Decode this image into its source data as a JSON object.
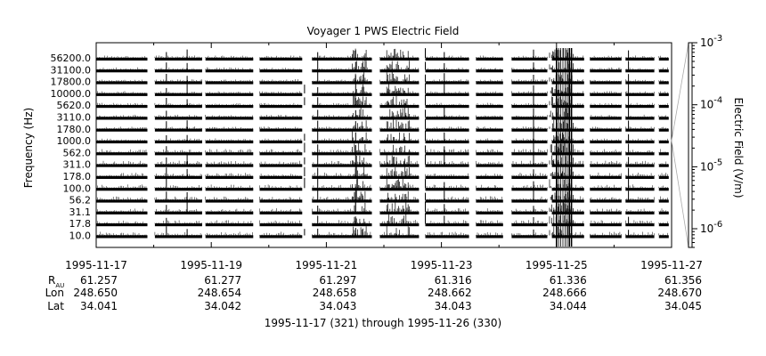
{
  "chart_data": {
    "type": "line",
    "title": "Voyager 1 PWS Electric Field",
    "ylabel": "Frequency (Hz)",
    "right_axis_label": "Electric Field (V/m)",
    "right_axis_scale": "log",
    "right_axis_range": [
      5e-07,
      0.001
    ],
    "right_axis_ticks": [
      {
        "value": 0.001,
        "mantissa": "10",
        "exponent": "-3"
      },
      {
        "value": 0.0001,
        "mantissa": "10",
        "exponent": "-4"
      },
      {
        "value": 1e-05,
        "mantissa": "10",
        "exponent": "-5"
      },
      {
        "value": 1e-06,
        "mantissa": "10",
        "exponent": "-6"
      }
    ],
    "frequency_channels": [
      "10.0",
      "17.8",
      "31.1",
      "56.2",
      "100.0",
      "178.0",
      "311.0",
      "562.0",
      "1000.0",
      "1780.0",
      "3110.0",
      "5620.0",
      "10000.0",
      "17800.0",
      "31100.0",
      "56200.0"
    ],
    "x_range": [
      "1995-11-17",
      "1995-11-27"
    ],
    "x_ticks": [
      "1995-11-17",
      "1995-11-19",
      "1995-11-21",
      "1995-11-23",
      "1995-11-25",
      "1995-11-27"
    ],
    "ephemeris_labels": {
      "rau_main": "R",
      "rau_sub": "AU",
      "lon": "Lon",
      "lat": "Lat"
    },
    "ephemeris": [
      {
        "rau": "61.257",
        "lon": "248.650",
        "lat": "34.041"
      },
      {
        "rau": "61.277",
        "lon": "248.654",
        "lat": "34.042"
      },
      {
        "rau": "61.297",
        "lon": "248.658",
        "lat": "34.043"
      },
      {
        "rau": "61.316",
        "lon": "248.662",
        "lat": "34.043"
      },
      {
        "rau": "61.336",
        "lon": "248.666",
        "lat": "34.044"
      },
      {
        "rau": "61.356",
        "lon": "248.670",
        "lat": "34.045"
      }
    ],
    "date_range_label": "1995-11-17 (321) through 1995-11-26 (330)",
    "data_segments_days": [
      [
        0,
        0.89
      ],
      [
        1.02,
        1.84
      ],
      [
        1.9,
        2.73
      ],
      [
        2.84,
        3.58
      ],
      [
        3.75,
        4.79
      ],
      [
        4.93,
        5.61
      ],
      [
        5.72,
        6.48
      ],
      [
        6.6,
        7.07
      ],
      [
        7.22,
        7.84
      ],
      [
        7.92,
        8.48
      ],
      [
        8.58,
        9.13
      ],
      [
        9.2,
        9.7
      ],
      [
        9.78,
        9.95
      ]
    ],
    "burst_events_days": [
      {
        "day": 1.22,
        "channels": [
          0,
          1,
          2,
          3,
          4,
          5,
          6,
          7,
          8,
          9,
          10,
          11,
          12,
          13,
          14,
          15
        ]
      },
      {
        "day": 1.58,
        "channels": [
          0,
          2,
          3,
          5,
          6,
          8,
          9,
          11,
          12,
          13,
          14,
          15
        ]
      },
      {
        "day": 3.62,
        "channels": [
          0,
          4,
          5,
          6,
          7,
          8,
          11,
          12
        ]
      },
      {
        "day": 3.85,
        "channels": [
          0,
          1,
          2,
          3,
          4,
          5,
          6,
          7,
          8,
          9,
          10,
          11,
          12,
          13,
          14,
          15
        ]
      },
      {
        "day": 4.51,
        "channels": [
          0,
          1,
          2,
          3,
          5,
          6,
          7,
          8,
          9,
          10,
          11,
          12,
          13,
          14,
          15
        ]
      },
      {
        "day": 5.72,
        "channels": [
          1,
          2,
          3,
          4,
          6,
          7,
          8,
          9,
          10,
          11,
          12,
          13,
          14,
          15
        ]
      },
      {
        "day": 6.05,
        "channels": [
          1,
          2,
          3,
          4,
          6,
          7,
          8,
          10,
          12,
          13,
          14,
          15
        ]
      },
      {
        "day": 7.6,
        "channels": [
          0,
          1,
          2,
          3,
          4,
          5,
          6,
          7,
          8,
          9,
          10,
          11,
          12,
          13,
          14,
          15
        ]
      },
      {
        "day": 9.25,
        "channels": [
          0,
          1,
          3,
          4,
          5,
          6,
          7,
          8,
          9,
          10,
          11,
          12,
          13,
          14,
          15
        ]
      }
    ],
    "dense_bursts_days": [
      [
        4.45,
        4.7
      ],
      [
        5.05,
        5.45
      ],
      [
        7.88,
        8.3
      ]
    ]
  }
}
